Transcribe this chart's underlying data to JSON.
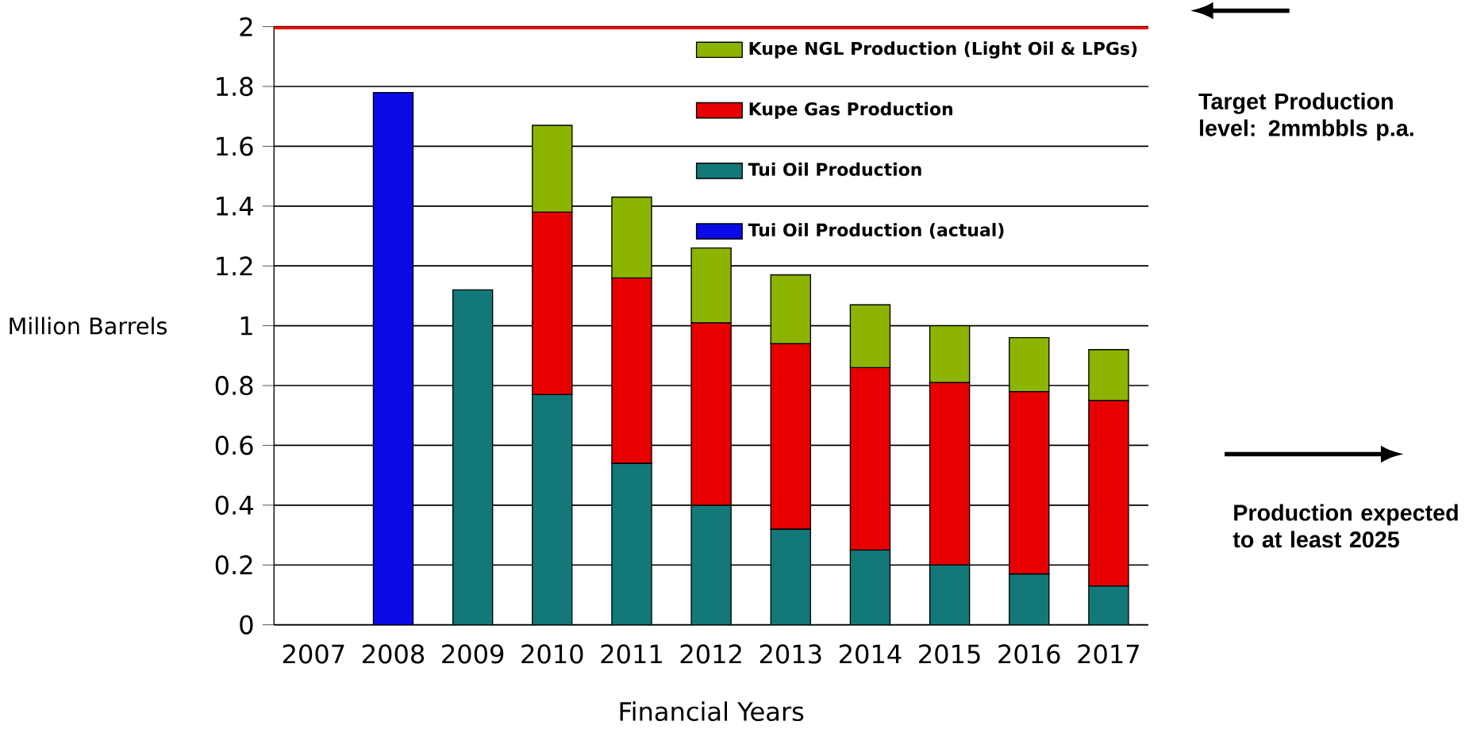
{
  "chart_data": {
    "type": "bar",
    "stacked": true,
    "xlabel": "Financial Years",
    "ylabel": "Million Barrels",
    "categories": [
      "2007",
      "2008",
      "2009",
      "2010",
      "2011",
      "2012",
      "2013",
      "2014",
      "2015",
      "2016",
      "2017"
    ],
    "series": [
      {
        "name": "Tui Oil Production (actual)",
        "color": "#0a0ae6",
        "values": [
          null,
          1.78,
          null,
          null,
          null,
          null,
          null,
          null,
          null,
          null,
          null
        ]
      },
      {
        "name": "Tui Oil Production",
        "color": "#137878",
        "values": [
          null,
          null,
          1.12,
          0.77,
          0.54,
          0.4,
          0.32,
          0.25,
          0.2,
          0.17,
          0.13
        ]
      },
      {
        "name": "Kupe Gas Production",
        "color": "#e80000",
        "values": [
          null,
          null,
          null,
          0.61,
          0.62,
          0.61,
          0.62,
          0.61,
          0.61,
          0.61,
          0.62
        ]
      },
      {
        "name": "Kupe NGL Production (Light Oil & LPGs)",
        "color": "#8cb400",
        "values": [
          null,
          null,
          null,
          0.29,
          0.27,
          0.25,
          0.23,
          0.21,
          0.19,
          0.18,
          0.17
        ]
      }
    ],
    "ylim": [
      0,
      2
    ],
    "yticks": [
      0,
      0.2,
      0.4,
      0.6,
      0.8,
      1,
      1.2,
      1.4,
      1.6,
      1.8,
      2
    ],
    "grid": "y",
    "legend": "top right",
    "ref_lines": [
      {
        "axis": "y",
        "value": 2,
        "color": "#ff0000"
      }
    ],
    "annotations": [
      "Target Production level: 2mmbbls p.a.",
      "Production expected to at least 2025"
    ]
  }
}
